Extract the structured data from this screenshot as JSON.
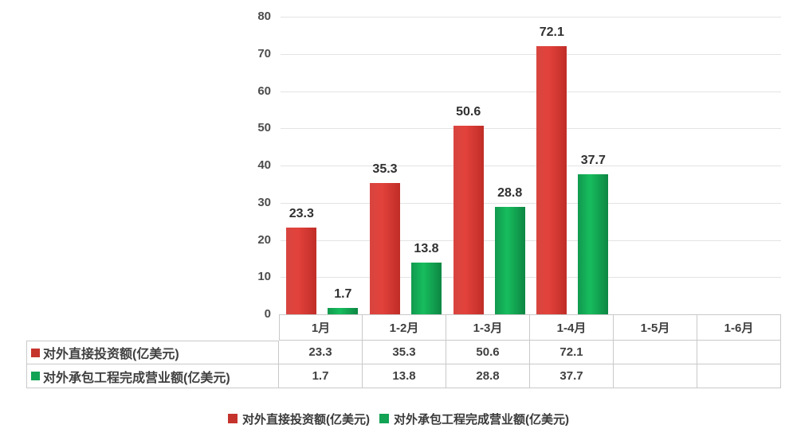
{
  "chart_data": {
    "type": "bar",
    "title": "",
    "xlabel": "",
    "ylabel": "",
    "categories": [
      "1月",
      "1-2月",
      "1-3月",
      "1-4月",
      "1-5月",
      "1-6月"
    ],
    "series": [
      {
        "name": "对外直接投资额(亿美元)",
        "color": "#C5342C",
        "values": [
          23.3,
          35.3,
          50.6,
          72.1,
          null,
          null
        ]
      },
      {
        "name": "对外承包工程完成营业额(亿美元)",
        "color": "#12A355",
        "values": [
          1.7,
          13.8,
          28.8,
          37.7,
          null,
          null
        ]
      }
    ],
    "ylim": [
      0,
      80
    ],
    "ytick_step": 10,
    "ytick_labels": [
      "0",
      "10",
      "20",
      "30",
      "40",
      "50",
      "60",
      "70",
      "80"
    ],
    "grid": "horizontal-only",
    "legend_position": "bottom",
    "has_data_table": true
  },
  "colors": {
    "series_red": "#C5342C",
    "series_green": "#12A355",
    "gridline": "#E3E3E3",
    "table_border": "#C9C9C9",
    "axis_text": "#4D4D4D",
    "data_label_text": "#303030"
  }
}
